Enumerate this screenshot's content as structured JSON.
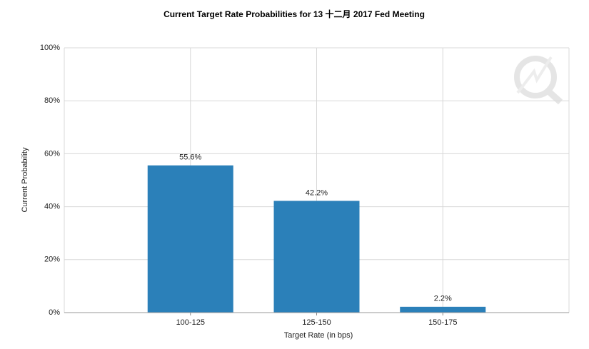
{
  "chart_data": {
    "type": "bar",
    "title": "Current Target Rate Probabilities for 13 十二月 2017  Fed Meeting",
    "x_label": "Target Rate (in bps)",
    "y_label": "Current Probability",
    "categories": [
      "100-125",
      "125-150",
      "150-175"
    ],
    "values": [
      55.6,
      42.2,
      2.2
    ],
    "value_labels": [
      "55.6%",
      "42.2%",
      "2.2%"
    ],
    "color": "#2b80b9",
    "ylim": [
      0,
      100
    ],
    "yticks": [
      {
        "value": 0,
        "label": "0%"
      },
      {
        "value": 20,
        "label": "20%"
      },
      {
        "value": 40,
        "label": "40%"
      },
      {
        "value": 60,
        "label": "60%"
      },
      {
        "value": 80,
        "label": "80%"
      },
      {
        "value": 100,
        "label": "100%"
      }
    ],
    "grid": true
  }
}
